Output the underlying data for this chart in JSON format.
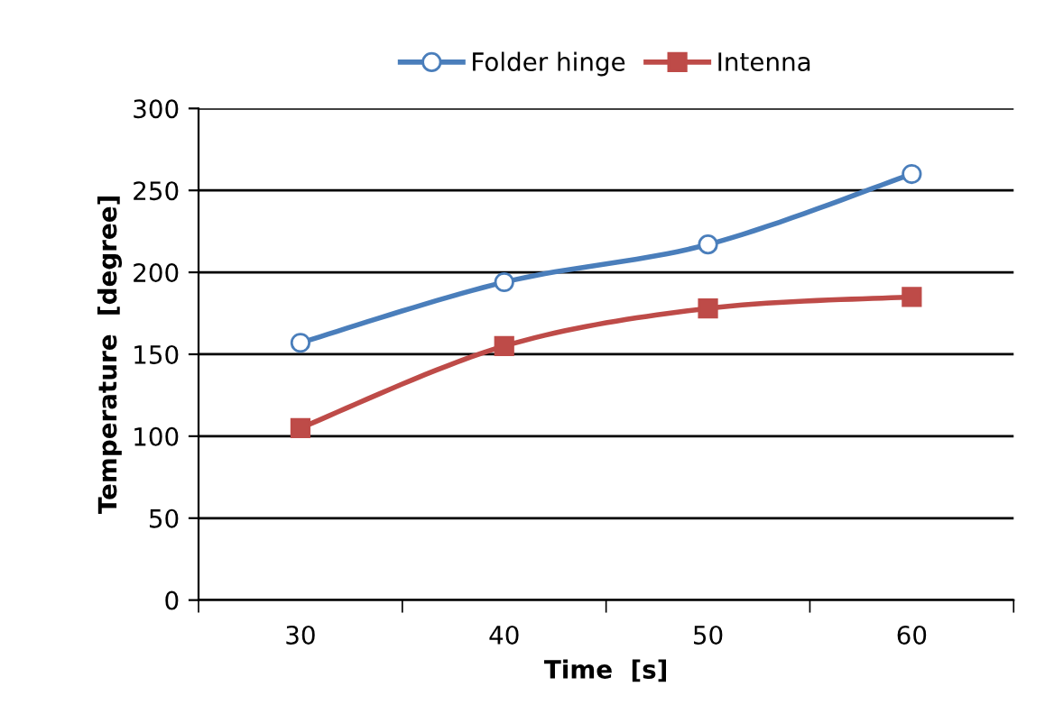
{
  "chart_data": {
    "type": "line",
    "xlabel": "Time  [s]",
    "ylabel": "Temperature  [degree]",
    "categories": [
      "30",
      "40",
      "50",
      "60"
    ],
    "series": [
      {
        "name": "Folder hinge",
        "color": "#4a7ebb",
        "marker": "circle",
        "values": [
          157,
          194,
          217,
          260
        ]
      },
      {
        "name": "Intenna",
        "color": "#be4b48",
        "marker": "square",
        "values": [
          105,
          155,
          178,
          185
        ]
      }
    ],
    "ylim": [
      0,
      300
    ],
    "yticks": [
      0,
      50,
      100,
      150,
      200,
      250,
      300
    ],
    "grid": "y",
    "legend": "top",
    "line_style": "solid"
  }
}
